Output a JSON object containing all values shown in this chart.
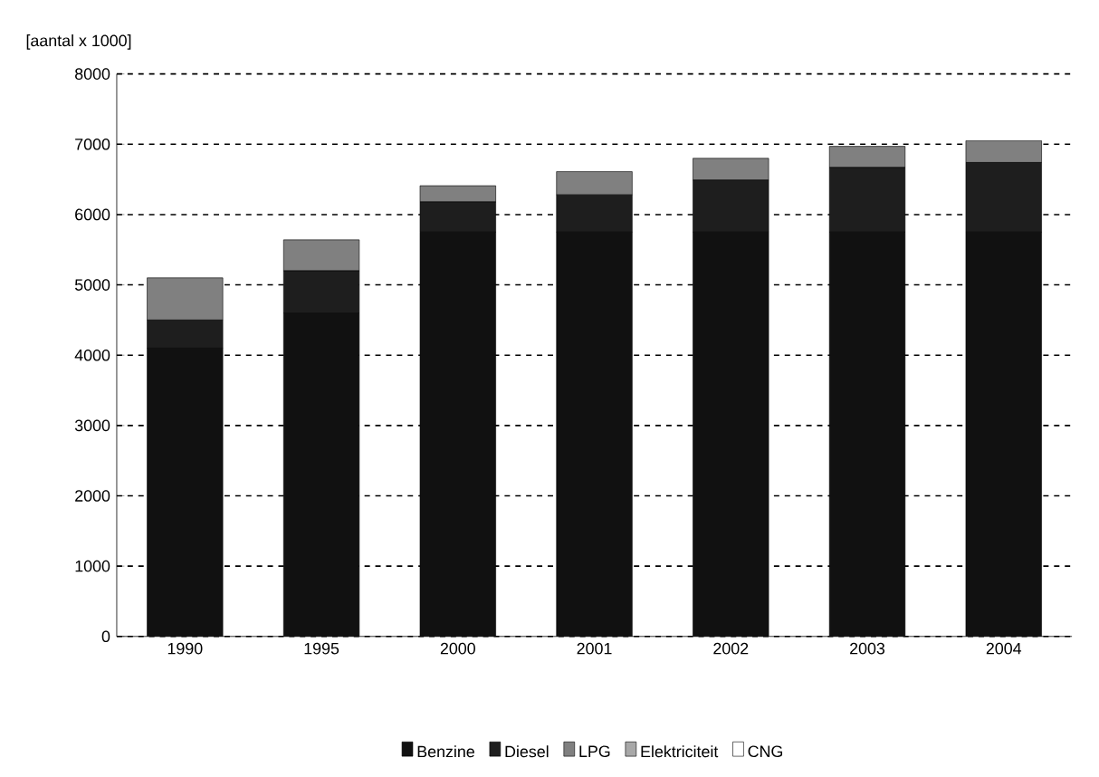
{
  "chart_data": {
    "type": "bar",
    "stacked": true,
    "ylabel": "[aantal x 1000]",
    "categories": [
      "1990",
      "1995",
      "2000",
      "2001",
      "2002",
      "2003",
      "2004"
    ],
    "series": [
      {
        "name": "Benzine",
        "color": "#111111",
        "values": [
          4100,
          4600,
          5750,
          5750,
          5750,
          5750,
          5750
        ]
      },
      {
        "name": "Diesel",
        "color": "#1e1e1e",
        "values": [
          400,
          600,
          430,
          530,
          740,
          920,
          990
        ]
      },
      {
        "name": "LPG",
        "color": "#808080",
        "values": [
          600,
          440,
          230,
          330,
          310,
          300,
          310
        ]
      },
      {
        "name": "Elektriciteit",
        "color": "#a8a8a8",
        "values": [
          0,
          0,
          0,
          0,
          0,
          0,
          0
        ]
      },
      {
        "name": "CNG",
        "color": "#ffffff",
        "values": [
          0,
          0,
          0,
          0,
          0,
          0,
          0
        ]
      }
    ],
    "ylim": [
      0,
      8000
    ],
    "yticks": [
      0,
      1000,
      2000,
      3000,
      4000,
      5000,
      6000,
      7000,
      8000
    ],
    "grid": "y",
    "legend": "bottom"
  }
}
